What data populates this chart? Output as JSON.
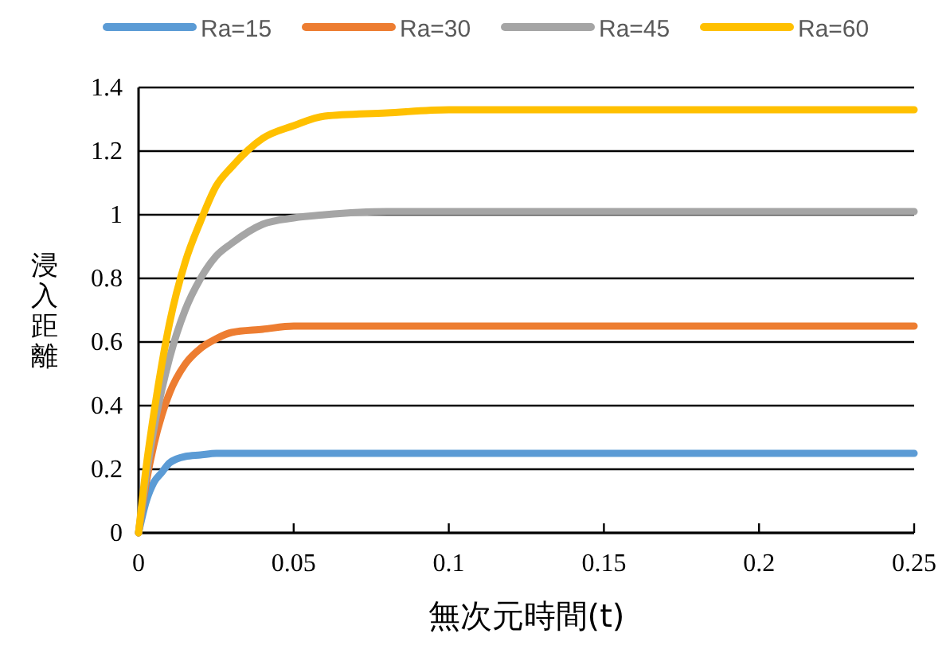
{
  "chart_data": {
    "type": "line",
    "xlabel": "無次元時間(t)",
    "ylabel": "浸入距離",
    "x": [
      0,
      0.0025,
      0.005,
      0.0075,
      0.01,
      0.015,
      0.02,
      0.025,
      0.03,
      0.04,
      0.05,
      0.06,
      0.08,
      0.1,
      0.15,
      0.2,
      0.25
    ],
    "series": [
      {
        "name": "Ra=15",
        "color": "#5b9bd5",
        "values": [
          0,
          0.1,
          0.16,
          0.19,
          0.22,
          0.24,
          0.245,
          0.25,
          0.25,
          0.25,
          0.25,
          0.25,
          0.25,
          0.25,
          0.25,
          0.25,
          0.25
        ]
      },
      {
        "name": "Ra=30",
        "color": "#ed7d31",
        "values": [
          0,
          0.16,
          0.28,
          0.37,
          0.44,
          0.53,
          0.58,
          0.61,
          0.63,
          0.64,
          0.65,
          0.65,
          0.65,
          0.65,
          0.65,
          0.65,
          0.65
        ]
      },
      {
        "name": "Ra=45",
        "color": "#a5a5a5",
        "values": [
          0,
          0.18,
          0.33,
          0.45,
          0.55,
          0.7,
          0.8,
          0.87,
          0.91,
          0.97,
          0.99,
          1,
          1.01,
          1.01,
          1.01,
          1.01,
          1.01
        ]
      },
      {
        "name": "Ra=60",
        "color": "#ffc000",
        "values": [
          0,
          0.21,
          0.38,
          0.53,
          0.66,
          0.85,
          0.98,
          1.09,
          1.15,
          1.24,
          1.28,
          1.31,
          1.32,
          1.33,
          1.33,
          1.33,
          1.33
        ]
      }
    ],
    "xlim": [
      0,
      0.25
    ],
    "xticks": [
      0,
      0.05,
      0.1,
      0.15,
      0.2,
      0.25
    ],
    "ylim": [
      0,
      1.4
    ],
    "yticks": [
      0,
      0.2,
      0.4,
      0.6,
      0.8,
      1,
      1.2,
      1.4
    ],
    "grid": "y",
    "legend": "top",
    "marker": "none",
    "line_style": "solid"
  }
}
